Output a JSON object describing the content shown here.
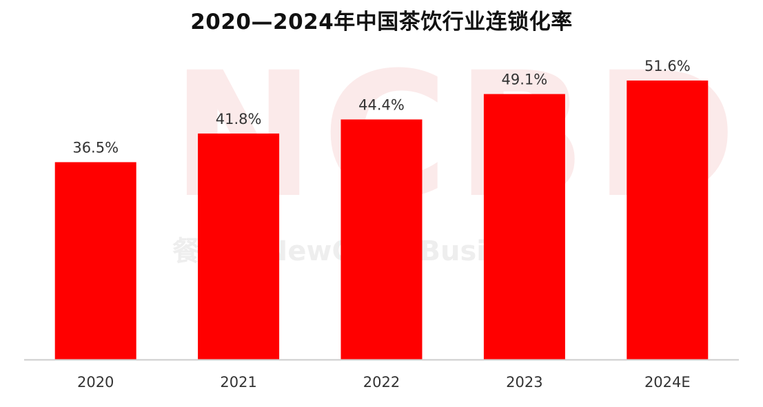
{
  "chart_data": {
    "type": "bar",
    "title": "2020—2024年中国茶饮行业连锁化率",
    "categories": [
      "2020",
      "2021",
      "2022",
      "2023",
      "2024E"
    ],
    "values": [
      36.5,
      41.8,
      44.4,
      49.1,
      51.6
    ],
    "value_labels": [
      "36.5%",
      "41.8%",
      "44.4%",
      "49.1%",
      "51.6%"
    ],
    "xlabel": "",
    "ylabel": "",
    "ylim": [
      0,
      55
    ],
    "grid": false,
    "colors": {
      "bar": "#ff0000",
      "axis": "#cccccc",
      "text": "#333333"
    }
  },
  "watermark": {
    "logo": "NCBD",
    "text": "餐宝典 NewChinaBusiness"
  }
}
